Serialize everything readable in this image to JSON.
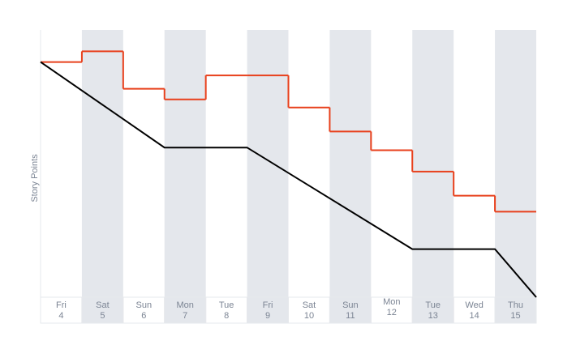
{
  "chart_data": {
    "type": "line",
    "y_label": "Story Points",
    "categories": [
      [
        "Fri",
        "4"
      ],
      [
        "Sat",
        "5"
      ],
      [
        "Sun",
        "6"
      ],
      [
        "Mon",
        "7"
      ],
      [
        "Tue",
        "8"
      ],
      [
        "Fri",
        "9"
      ],
      [
        "Sat",
        "10"
      ],
      [
        "Sun",
        "11"
      ],
      [
        "Mon",
        "12"
      ],
      [
        "Tue",
        "13"
      ],
      [
        "Wed",
        "14"
      ],
      [
        "Thu",
        "15"
      ]
    ],
    "ylim": [
      0,
      100
    ],
    "xlim": [
      0,
      12
    ],
    "band_color": "#e4e7ec",
    "series": [
      {
        "color": "#e8401c",
        "step": true,
        "values": [
          88,
          92,
          78,
          74,
          83,
          83,
          71,
          62,
          55,
          47,
          38,
          32
        ]
      },
      {
        "color": "#000000",
        "x": [
          0,
          3,
          5,
          9,
          11,
          12
        ],
        "values": [
          88,
          56,
          56,
          18,
          18,
          0
        ]
      }
    ]
  }
}
